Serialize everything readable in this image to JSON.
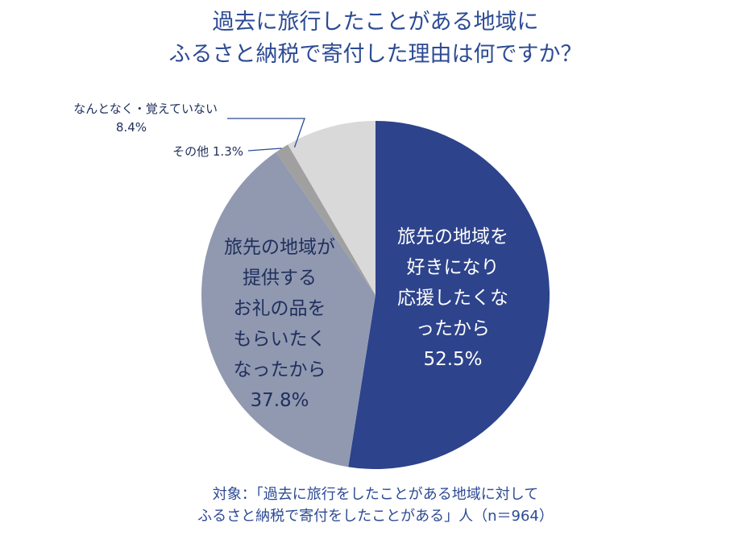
{
  "title": {
    "line1": "過去に旅行したことがある地域に",
    "line2": "ふるさと納税で寄付した理由は何ですか？"
  },
  "footnote": {
    "line1": "対象：「過去に旅行をしたことがある地域に対して",
    "line2": "ふるさと納税で寄付をしたことがある」人（n＝964）"
  },
  "colors": {
    "title": "#2d4b94",
    "callout_text": "#1f2f5c",
    "leader": "#2d4b94"
  },
  "chart_data": {
    "type": "pie",
    "unit": "%",
    "start": "12 o'clock, clockwise",
    "slices": [
      {
        "key": "travel_support",
        "label_lines": [
          "旅先の地域を",
          "好きになり",
          "応援したくな",
          "ったから"
        ],
        "value": 52.5,
        "value_label": "52.5%",
        "color": "#2d438b",
        "label_color": "#ffffff"
      },
      {
        "key": "gifts",
        "label_lines": [
          "旅先の地域が",
          "提供する",
          "お礼の品を",
          "もらいたく",
          "なったから"
        ],
        "value": 37.8,
        "value_label": "37.8%",
        "color": "#9199b1",
        "label_color": "#1f2f5c"
      },
      {
        "key": "other",
        "label_lines": [
          "その他"
        ],
        "value": 1.3,
        "value_label": "1.3%",
        "color": "#a0a0a0",
        "label_color": "#1f2f5c"
      },
      {
        "key": "unknown",
        "label_lines": [
          "なんとなく・覚えていない"
        ],
        "value": 8.4,
        "value_label": "8.4%",
        "color": "#d9d9d9",
        "label_color": "#1f2f5c"
      }
    ]
  }
}
